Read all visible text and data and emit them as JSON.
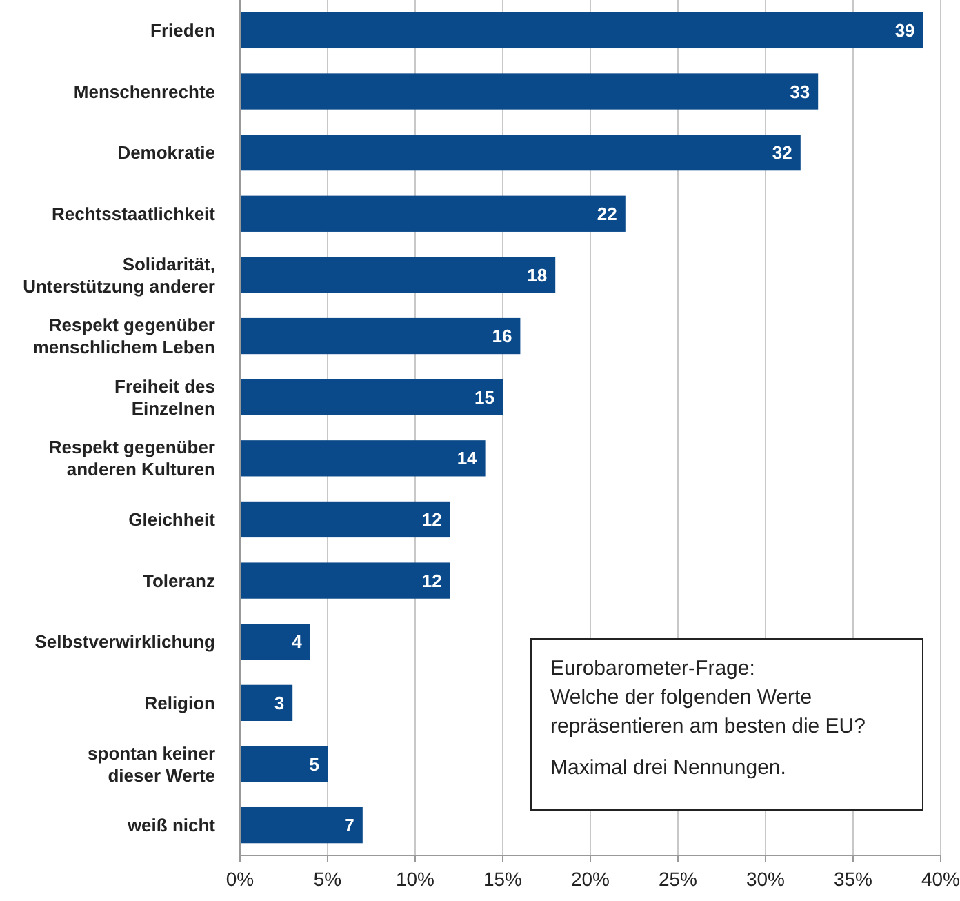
{
  "chart_data": {
    "type": "bar",
    "orientation": "horizontal",
    "categories": [
      "Frieden",
      "Menschenrechte",
      "Demokratie",
      "Rechtsstaatlichkeit",
      "Solidarität,\nUnterstützung anderer",
      "Respekt gegenüber\nmenschlichem Leben",
      "Freiheit des\nEinzelnen",
      "Respekt gegenüber\nanderen Kulturen",
      "Gleichheit",
      "Toleranz",
      "Selbstverwirklichung",
      "Religion",
      "spontan keiner\ndieser Werte",
      "weiß nicht"
    ],
    "values": [
      39,
      33,
      32,
      22,
      18,
      16,
      15,
      14,
      12,
      12,
      4,
      3,
      5,
      7
    ],
    "color": "#0b4a8a",
    "xlim": [
      0,
      40
    ],
    "xticks": [
      {
        "value": 0,
        "label": "0%"
      },
      {
        "value": 5,
        "label": "5%"
      },
      {
        "value": 10,
        "label": "10%"
      },
      {
        "value": 15,
        "label": "15%"
      },
      {
        "value": 20,
        "label": "20%"
      },
      {
        "value": 25,
        "label": "25%"
      },
      {
        "value": 30,
        "label": "30%"
      },
      {
        "value": 35,
        "label": "35%"
      },
      {
        "value": 40,
        "label": "40%"
      }
    ],
    "grid": "x",
    "data_labels": true,
    "annotations": [
      "Eurobarometer-Frage:\nWelche der folgenden Werte\nrepräsentieren am besten die EU?",
      "Maximal drei Nennungen."
    ]
  }
}
